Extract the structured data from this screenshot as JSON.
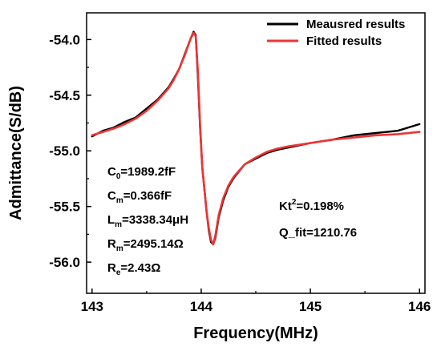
{
  "chart_data": {
    "type": "line",
    "xlabel": "Frequency(MHz)",
    "ylabel": "Admittance(S/dB)",
    "xlim": [
      142.95,
      146.05
    ],
    "ylim": [
      -56.28,
      -53.76
    ],
    "x_ticks": [
      143,
      144,
      145,
      146
    ],
    "x_tick_labels": [
      "143",
      "144",
      "145",
      "146"
    ],
    "y_ticks": [
      -54.0,
      -54.5,
      -55.0,
      -55.5,
      -56.0
    ],
    "y_tick_labels": [
      "-54.0",
      "-54.5",
      "-55.0",
      "-55.5",
      "-56.0"
    ],
    "grid": false,
    "legend_position": "top-right",
    "series": [
      {
        "name": "Meausred results",
        "color": "#000000",
        "x": [
          143.0,
          143.1,
          143.2,
          143.3,
          143.4,
          143.5,
          143.6,
          143.7,
          143.75,
          143.8,
          143.85,
          143.9,
          143.93,
          143.95,
          143.97,
          143.99,
          144.01,
          144.03,
          144.05,
          144.07,
          144.09,
          144.11,
          144.13,
          144.16,
          144.2,
          144.25,
          144.3,
          144.4,
          144.5,
          144.6,
          144.7,
          144.8,
          145.0,
          145.2,
          145.4,
          145.6,
          145.8,
          146.0
        ],
        "y": [
          -54.87,
          -54.82,
          -54.79,
          -54.74,
          -54.7,
          -54.62,
          -54.54,
          -54.43,
          -54.35,
          -54.26,
          -54.13,
          -54.0,
          -53.93,
          -53.96,
          -54.35,
          -54.8,
          -55.15,
          -55.35,
          -55.55,
          -55.72,
          -55.82,
          -55.84,
          -55.78,
          -55.6,
          -55.45,
          -55.32,
          -55.24,
          -55.12,
          -55.07,
          -55.02,
          -54.99,
          -54.97,
          -54.93,
          -54.9,
          -54.86,
          -54.84,
          -54.82,
          -54.76
        ]
      },
      {
        "name": "Fitted results",
        "color": "#ee3333",
        "x": [
          143.0,
          143.1,
          143.2,
          143.3,
          143.4,
          143.5,
          143.6,
          143.7,
          143.75,
          143.8,
          143.85,
          143.9,
          143.93,
          143.95,
          143.97,
          143.99,
          144.01,
          144.03,
          144.05,
          144.07,
          144.09,
          144.11,
          144.13,
          144.16,
          144.2,
          144.25,
          144.3,
          144.4,
          144.5,
          144.6,
          144.7,
          144.8,
          145.0,
          145.2,
          145.4,
          145.6,
          145.8,
          146.0
        ],
        "y": [
          -54.86,
          -54.83,
          -54.8,
          -54.76,
          -54.71,
          -54.64,
          -54.55,
          -54.44,
          -54.36,
          -54.26,
          -54.14,
          -54.0,
          -53.94,
          -53.97,
          -54.3,
          -54.78,
          -55.15,
          -55.35,
          -55.55,
          -55.7,
          -55.8,
          -55.84,
          -55.76,
          -55.58,
          -55.43,
          -55.31,
          -55.23,
          -55.12,
          -55.06,
          -55.01,
          -54.98,
          -54.96,
          -54.93,
          -54.9,
          -54.88,
          -54.86,
          -54.85,
          -54.83
        ]
      }
    ],
    "annotations": {
      "left": [
        {
          "base": "C",
          "sub": "0",
          "rest": "=1989.2fF"
        },
        {
          "base": "C",
          "sub": "m",
          "rest": "=0.366fF"
        },
        {
          "base": "L",
          "sub": "m",
          "rest": "=3338.34μH"
        },
        {
          "base": "R",
          "sub": "m",
          "rest": "=2495.14Ω"
        },
        {
          "base": "R",
          "sub": "e",
          "rest": "=2.43Ω"
        }
      ],
      "kt": {
        "base": "Kt",
        "sup": "2",
        "rest": "=0.198%"
      },
      "q": "Q_fit=1210.76"
    }
  }
}
